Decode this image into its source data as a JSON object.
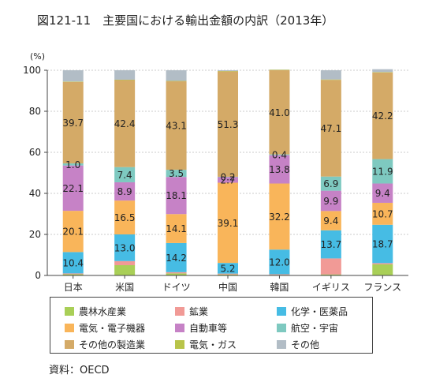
{
  "title": "図121-11　主要国における輸出金額の内訳（2013年）",
  "source": "資料：OECD",
  "chart_data": {
    "type": "bar",
    "stacked": true,
    "title": "図121-11　主要国における輸出金額の内訳（2013年）",
    "ylabel": "(%)",
    "ylim": [
      0,
      100
    ],
    "yticks": [
      0,
      20,
      40,
      60,
      80,
      100
    ],
    "categories": [
      "日本",
      "米国",
      "ドイツ",
      "中国",
      "韓国",
      "イギリス",
      "フランス"
    ],
    "series": [
      {
        "name": "農林水産業",
        "color": "#a9cf57",
        "values": [
          0.6,
          5.0,
          1.0,
          0.5,
          0.3,
          0.5,
          5.4
        ],
        "labels": [
          "",
          "",
          "",
          "",
          "",
          "",
          ""
        ]
      },
      {
        "name": "鉱業",
        "color": "#f19a96",
        "values": [
          0.4,
          2.0,
          0.6,
          0.4,
          0.3,
          7.8,
          0.6
        ],
        "labels": [
          "",
          "",
          "",
          "",
          "",
          "",
          ""
        ]
      },
      {
        "name": "化学・医薬品",
        "color": "#46bce4",
        "values": [
          10.4,
          13.0,
          14.2,
          5.2,
          12.0,
          13.7,
          18.7
        ],
        "labels": [
          "10.4",
          "13.0",
          "14.2",
          "5.2",
          "12.0",
          "13.7",
          "18.7"
        ]
      },
      {
        "name": "電気・電子機器",
        "color": "#f9b55a",
        "values": [
          20.1,
          16.5,
          14.1,
          39.1,
          32.2,
          9.4,
          10.7
        ],
        "labels": [
          "20.1",
          "16.5",
          "14.1",
          "39.1",
          "32.2",
          "9.4",
          "10.7"
        ]
      },
      {
        "name": "自動車等",
        "color": "#c682c6",
        "values": [
          22.1,
          8.9,
          18.1,
          2.7,
          13.8,
          9.9,
          9.4
        ],
        "labels": [
          "22.1",
          "8.9",
          "18.1",
          "2.7",
          "13.8",
          "9.9",
          "9.4"
        ]
      },
      {
        "name": "航空・宇宙",
        "color": "#7ec9c0",
        "values": [
          1.0,
          7.4,
          3.5,
          0.2,
          0.4,
          6.9,
          11.9
        ],
        "labels": [
          "1.0",
          "7.4",
          "3.5",
          "0.2",
          "0.4",
          "6.9",
          "11.9"
        ]
      },
      {
        "name": "その他の製造業",
        "color": "#d4aa67",
        "values": [
          39.7,
          42.4,
          43.1,
          51.3,
          41.0,
          47.1,
          42.2
        ],
        "labels": [
          "39.7",
          "42.4",
          "43.1",
          "51.3",
          "41.0",
          "47.1",
          "42.2"
        ]
      },
      {
        "name": "電気・ガス",
        "color": "#b8c44a",
        "values": [
          0.2,
          0.2,
          0.2,
          0.2,
          0.2,
          0.2,
          0.2
        ],
        "labels": [
          "",
          "",
          "",
          "",
          "",
          "",
          ""
        ]
      },
      {
        "name": "その他",
        "color": "#b2bdc6",
        "values": [
          5.5,
          4.6,
          5.2,
          0.4,
          0.1,
          4.5,
          1.4
        ],
        "labels": [
          "",
          "",
          "",
          "",
          "",
          "",
          ""
        ]
      }
    ]
  }
}
